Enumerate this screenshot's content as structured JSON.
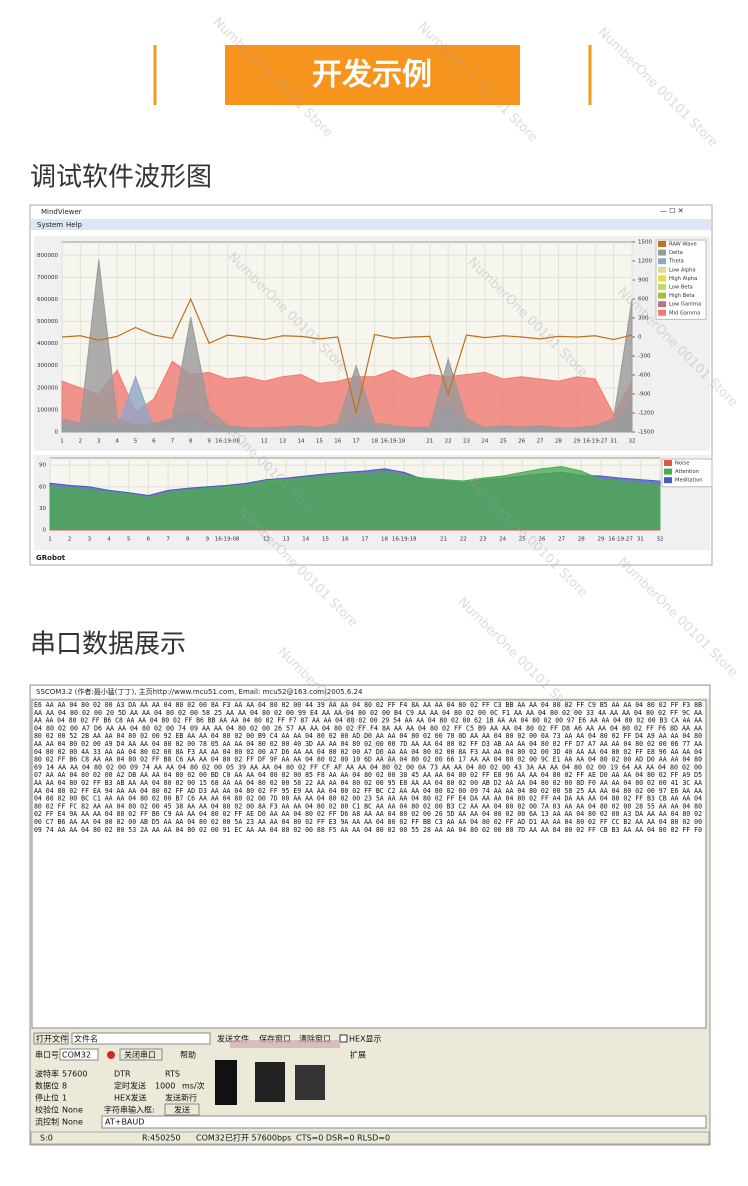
{
  "header": {
    "title": "开发示例"
  },
  "watermark": "NumberOne 00101 Store",
  "section1": {
    "title": "调试软件波形图"
  },
  "section2": {
    "title": "串口数据展示"
  },
  "viewer": {
    "window_title": "MindViewer",
    "menu": [
      "System",
      "Help"
    ],
    "footer": "GRobot"
  },
  "chart_data": [
    {
      "type": "area",
      "legend": "right",
      "grid": true,
      "categories": [
        "1",
        "2",
        "3",
        "4",
        "5",
        "6",
        "7",
        "8",
        "9",
        "16:19:08",
        null,
        "12",
        "13",
        "14",
        "15",
        "16",
        "17",
        "18",
        "16:19:18",
        null,
        "21",
        "22",
        "23",
        "24",
        "25",
        "26",
        "27",
        "28",
        "29",
        "16:19:27",
        "31",
        "32"
      ],
      "ylim": [
        0,
        860000
      ],
      "yticks": [
        0,
        100000,
        200000,
        300000,
        400000,
        500000,
        600000,
        700000,
        800000
      ],
      "y2lim": [
        -1500,
        1500
      ],
      "y2ticks": [
        1500,
        1200,
        900,
        600,
        300,
        0,
        -300,
        -600,
        -900,
        -1200,
        -1500
      ],
      "series": [
        {
          "name": "RAW Wave",
          "color": "#c0701c",
          "axis": "y2",
          "values": [
            0,
            20,
            -50,
            10,
            150,
            30,
            -20,
            600,
            -100,
            30,
            0,
            -40,
            20,
            10,
            -30,
            0,
            -1200,
            40,
            -20,
            0,
            10,
            -900,
            30,
            -10,
            20,
            0,
            -30,
            10,
            0,
            20,
            -40,
            30
          ]
        },
        {
          "name": "Delta",
          "color": "#9a9a9a",
          "values": [
            60000,
            40000,
            780000,
            60000,
            30000,
            40000,
            60000,
            520000,
            100000,
            30000,
            20000,
            20000,
            20000,
            30000,
            20000,
            40000,
            300000,
            40000,
            30000,
            20000,
            20000,
            330000,
            60000,
            20000,
            30000,
            20000,
            30000,
            20000,
            20000,
            30000,
            60000,
            600000
          ]
        },
        {
          "name": "Theta",
          "color": "#8fa6c6",
          "values": [
            30000,
            20000,
            60000,
            20000,
            250000,
            20000,
            30000,
            90000,
            30000,
            20000,
            20000,
            20000,
            20000,
            20000,
            20000,
            20000,
            80000,
            20000,
            20000,
            20000,
            20000,
            120000,
            20000,
            20000,
            20000,
            20000,
            20000,
            20000,
            20000,
            20000,
            20000,
            150000
          ]
        },
        {
          "name": "Low Alpha",
          "color": "#e0dc8c",
          "values": [
            15000,
            12000,
            20000,
            15000,
            10000,
            14000,
            15000,
            20000,
            15000,
            12000,
            14000,
            12000,
            15000,
            14000,
            12000,
            15000,
            20000,
            14000,
            12000,
            15000,
            14000,
            20000,
            12000,
            15000,
            14000,
            12000,
            15000,
            14000,
            12000,
            15000,
            14000,
            20000
          ]
        },
        {
          "name": "High Alpha",
          "color": "#e8dc4c",
          "values": [
            10000,
            9000,
            12000,
            10000,
            8000,
            9000,
            10000,
            12000,
            9000,
            10000,
            9000,
            8000,
            10000,
            9000,
            10000,
            9000,
            12000,
            10000,
            9000,
            10000,
            9000,
            12000,
            10000,
            9000,
            10000,
            9000,
            10000,
            9000,
            10000,
            9000,
            10000,
            12000
          ]
        },
        {
          "name": "Low Beta",
          "color": "#c4d864",
          "values": [
            12000,
            10000,
            14000,
            12000,
            9000,
            11000,
            12000,
            14000,
            11000,
            12000,
            10000,
            11000,
            12000,
            10000,
            11000,
            12000,
            14000,
            11000,
            12000,
            10000,
            11000,
            14000,
            12000,
            10000,
            11000,
            12000,
            10000,
            11000,
            12000,
            10000,
            11000,
            14000
          ]
        },
        {
          "name": "High Beta",
          "color": "#a8bc3c",
          "values": [
            15000,
            13000,
            18000,
            15000,
            12000,
            14000,
            15000,
            18000,
            14000,
            15000,
            13000,
            14000,
            15000,
            13000,
            14000,
            15000,
            18000,
            14000,
            15000,
            13000,
            14000,
            18000,
            15000,
            13000,
            14000,
            15000,
            13000,
            14000,
            15000,
            13000,
            14000,
            18000
          ]
        },
        {
          "name": "Low Gamma",
          "color": "#c0708c",
          "values": [
            20000,
            18000,
            30000,
            25000,
            15000,
            20000,
            60000,
            100000,
            40000,
            20000,
            18000,
            20000,
            22000,
            20000,
            18000,
            20000,
            40000,
            20000,
            18000,
            20000,
            22000,
            50000,
            20000,
            18000,
            20000,
            22000,
            20000,
            18000,
            20000,
            22000,
            20000,
            40000
          ]
        },
        {
          "name": "Mid Gamma",
          "color": "#f07a72",
          "values": [
            230000,
            200000,
            170000,
            280000,
            90000,
            150000,
            320000,
            260000,
            270000,
            240000,
            250000,
            230000,
            250000,
            260000,
            220000,
            230000,
            250000,
            250000,
            280000,
            240000,
            260000,
            250000,
            260000,
            270000,
            240000,
            250000,
            240000,
            230000,
            250000,
            240000,
            80000,
            230000
          ]
        }
      ]
    },
    {
      "type": "area",
      "legend": "right",
      "grid": true,
      "categories": [
        "1",
        "2",
        "3",
        "4",
        "5",
        "6",
        "7",
        "8",
        "9",
        "16:19:08",
        null,
        "12",
        "13",
        "14",
        "15",
        "16",
        "17",
        "18",
        "16:19:18",
        null,
        "21",
        "22",
        "23",
        "24",
        "25",
        "26",
        "27",
        "28",
        "29",
        "16:19:27",
        "31",
        "32"
      ],
      "ylim": [
        0,
        100
      ],
      "yticks": [
        0,
        30,
        60,
        90
      ],
      "series": [
        {
          "name": "Noise",
          "color": "#e0584c",
          "values": [
            0,
            0,
            0,
            0,
            0,
            0,
            0,
            0,
            0,
            0,
            0,
            0,
            0,
            0,
            0,
            0,
            0,
            0,
            0,
            0,
            0,
            0,
            0,
            0,
            0,
            0,
            0,
            0,
            0,
            0,
            0,
            0
          ]
        },
        {
          "name": "Attention",
          "color": "#4caa50",
          "values": [
            60,
            58,
            56,
            52,
            50,
            45,
            52,
            55,
            58,
            60,
            62,
            68,
            70,
            72,
            75,
            78,
            78,
            80,
            76,
            72,
            70,
            68,
            72,
            75,
            80,
            85,
            88,
            82,
            70,
            68,
            65,
            62
          ]
        },
        {
          "name": "Meditation",
          "color": "#4a5cb8",
          "values": [
            65,
            62,
            60,
            55,
            52,
            48,
            55,
            58,
            60,
            62,
            65,
            70,
            72,
            75,
            78,
            80,
            82,
            85,
            80,
            70,
            68,
            66,
            70,
            72,
            75,
            78,
            80,
            76,
            75,
            72,
            70,
            68
          ]
        }
      ]
    }
  ],
  "serial": {
    "window_title": "SSCOM3.2 (作者:聂小猛(丁丁), 主页http://www.mcu51.com, Email: mcu52@163.com)2005.6.24",
    "lines": [
      "E6 AA AA 04 80 02 00 A3 DA AA AA 04 80 02 00 8A F3 AA AA 04 80 02 00 44 39 AA AA 04 80 02 FF F4 8A AA AA 04 80 02 FF C3 BB AA AA 04 80 02 FF C9 B5 AA AA 04 80 02 FF F3 8B",
      "AA AA 04 80 02 00 20 5D AA AA 04 80 02 00 58 25 AA AA 04 80 02 00 99 E4 AA AA 04 80 02 00 B4 C9 AA AA 04 80 02 00 0C F1 AA AA 04 80 02 00 33 4A AA AA 04 80 02 FF 9C AA",
      "AA AA 04 80 02 FF B6 C8 AA AA 04 80 02 FF B6 BB AA AA 04 80 02 FF F7 87 AA AA 04 80 02 00 29 54 AA AA 04 80 02 00 62 1B AA AA 04 80 02 00 97 E6 AA AA 04 80 02 00 B3 CA AA AA",
      "04 80 02 00 A7 D6 AA AA 04 80 02 00 74 09 AA AA 04 80 02 00 26 57 AA AA 04 80 02 FF F4 8A AA AA 04 80 02 FF C5 B9 AA AA 04 80 02 FF D8 A6 AA AA 04 80 02 FF F6 8D AA AA",
      "80 02 00 52 2B AA AA 04 80 02 00 92 EB AA AA 04 80 02 00 B9 C4 AA AA 04 80 02 00 AD D0 AA AA 04 80 02 00 70 0D AA AA 04 80 02 00 0A 73 AA AA 04 80 02 FF D4 A9 AA AA 04 80",
      "AA AA 04 80 02 00 A9 D4 AA AA 04 80 02 00 78 05 AA AA 04 80 02 00 40 3D AA AA 04 80 02 00 00 7D AA AA 04 80 02 FF D3 AB AA AA 04 80 02 FF D7 A7 AA AA 04 80 02 00 06 77 AA",
      "04 80 02 00 4A 33 AA AA 04 80 02 00 8A F3 AA AA 04 80 02 00 A7 D6 AA AA 04 80 02 00 A7 D6 AA AA 04 80 02 00 8A F3 AA AA 04 80 02 00 3D 40 AA AA 04 80 02 FF E8 96 AA AA 04",
      "80 02 FF B6 C8 AA AA 04 80 02 FF B8 C6 AA AA 04 80 02 FF DF 9F AA AA 04 80 02 00 10 6D AA AA 04 80 02 00 66 17 AA AA 04 80 02 00 9C E1 AA AA 04 80 02 00 AD D0 AA AA 04 80",
      "69 14 AA AA 04 80 02 00 09 74 AA AA 04 80 02 00 05 39 AA AA 04 80 02 FF CF AF AA AA 04 80 02 00 0A 73 AA AA 04 80 02 00 43 3A AA AA 04 80 02 00 19 64 AA AA 04 80 02 00",
      "07 AA AA 04 80 02 00 A2 DB AA AA 04 80 02 00 BD C0 AA AA 04 80 02 00 85 F8 AA AA 04 80 02 00 38 45 AA AA 04 80 02 FF E8 96 AA AA 04 80 02 FF AE D0 AA AA 04 80 02 FF A9 D5",
      "AA AA 04 80 02 FF B3 AB AA AA 04 80 02 00 15 68 AA AA 04 80 02 00 58 22 AA AA 04 80 02 00 95 E8 AA AA 04 80 02 00 AB D2 AA AA 04 80 02 00 8D F0 AA AA 04 80 02 00 41 3C AA",
      "AA 04 80 02 FF EA 94 AA AA 04 80 02 FF AD D3 AA AA 04 80 02 FF 95 E9 AA AA 04 80 02 FF BC C2 AA AA 04 80 02 00 09 74 AA AA 04 80 02 00 58 25 AA AA 04 80 02 00 97 E6 AA AA",
      "04 80 02 00 BC C1 AA AA 04 80 02 00 B7 C6 AA AA 04 80 02 00 7D 00 AA AA 04 80 02 00 23 5A AA AA 04 80 02 FF E4 DA AA AA 04 80 02 FF A4 DA AA AA 04 80 02 FF B3 CB AA AA 04",
      "80 02 FF FC 82 AA AA 04 80 02 00 45 38 AA AA 04 80 02 00 8A F3 AA AA 04 80 02 00 C1 BC AA AA 04 80 02 00 B3 C2 AA AA 04 80 02 00 7A 03 AA AA 04 80 02 00 28 55 AA AA 04 80",
      "02 FF E4 9A AA AA 04 80 02 FF B6 C9 AA AA 04 80 02 FF AE D0 AA AA 04 80 02 FF D6 A8 AA AA 04 80 02 00 20 5D AA AA 04 80 02 00 6A 13 AA AA 04 80 02 00 A3 DA AA AA 04 80 02",
      "00 C7 B6 AA AA 04 80 02 00 AB D5 AA AA 04 80 02 00 5A 23 AA AA 04 80 02 FF E3 9A AA AA 04 80 02 FF BB C3 AA AA 04 80 02 FF AD D1 AA AA 04 80 02 FF CC B2 AA AA 04 80 02 00",
      "09 74 AA AA 04 80 02 00 53 2A AA AA 04 80 02 00 91 EC AA AA 04 80 02 00 88 F5 AA AA 04 80 02 00 55 28 AA AA 04 80 02 00 00 7D AA AA 04 80 02 FF CB B3 AA AA 04 80 02 FF F0"
    ],
    "controls": {
      "open_file": "打开文件",
      "file_name": "文件名",
      "send_file": "发送文件",
      "save_window": "保存窗口",
      "clear_window": "清除窗口",
      "hex_display": "HEX显示",
      "port_label": "串口号",
      "port": "COM32",
      "close_port": "关闭串口",
      "help": "帮助",
      "expand": "扩展",
      "baud_label": "波特率",
      "baud": "57600",
      "dtr": "DTR",
      "rts": "RTS",
      "data_bits_label": "数据位",
      "data_bits": "8",
      "timed_send": "定时发送",
      "interval": "1000",
      "interval_unit": "ms/次",
      "stop_bits_label": "停止位",
      "stop_bits": "1",
      "hex_send": "HEX发送",
      "send_newline": "发送新行",
      "parity_label": "校验位",
      "parity": "None",
      "input_label": "字符串输入框:",
      "send": "发送",
      "flow_label": "流控制",
      "flow": "None",
      "input": "AT+BAUD"
    },
    "status": [
      "S:0",
      "R:450250",
      "COM32已打开  57600bps",
      "CTS=0 DSR=0 RLSD=0"
    ]
  }
}
